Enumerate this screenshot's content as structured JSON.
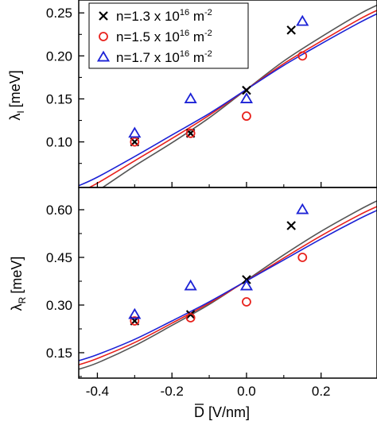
{
  "chart_data": [
    {
      "type": "scatter",
      "panel": "top",
      "ylabel": "λ_I [meV]",
      "ylabel_main": "λ",
      "ylabel_sub": "I",
      "ylabel_unit": "[meV]",
      "xlim": [
        -0.45,
        0.35
      ],
      "ylim": [
        0.047,
        0.265
      ],
      "yticks": [
        0.1,
        0.15,
        0.2,
        0.25
      ],
      "ytick_labels": [
        "0.10",
        "0.15",
        "0.20",
        "0.25"
      ],
      "legend_position": "top-left",
      "series": [
        {
          "name": "n=1.3 x 10^16 m^-2",
          "marker": "x",
          "color": "#000000",
          "points": [
            [
              -0.3,
              0.1
            ],
            [
              -0.15,
              0.11
            ],
            [
              0.0,
              0.16
            ],
            [
              0.12,
              0.23
            ]
          ]
        },
        {
          "name": "n=1.5 x 10^16 m^-2",
          "marker": "circle",
          "color": "#e8211c",
          "points": [
            [
              -0.3,
              0.1
            ],
            [
              -0.15,
              0.11
            ],
            [
              0.0,
              0.13
            ],
            [
              0.15,
              0.2
            ]
          ]
        },
        {
          "name": "n=1.7 x 10^16 m^-2",
          "marker": "triangle",
          "color": "#1c22d6",
          "points": [
            [
              -0.3,
              0.11
            ],
            [
              -0.15,
              0.15
            ],
            [
              0.0,
              0.15
            ],
            [
              0.15,
              0.24
            ]
          ]
        }
      ],
      "fits": [
        {
          "color": "#555555",
          "points": [
            [
              -0.45,
              0.031
            ],
            [
              -0.4,
              0.043
            ],
            [
              -0.3,
              0.072
            ],
            [
              -0.2,
              0.099
            ],
            [
              -0.1,
              0.128
            ],
            [
              0.0,
              0.161
            ],
            [
              0.1,
              0.194
            ],
            [
              0.2,
              0.222
            ],
            [
              0.3,
              0.248
            ],
            [
              0.35,
              0.259
            ]
          ]
        },
        {
          "color": "#e8211c",
          "points": [
            [
              -0.45,
              0.041
            ],
            [
              -0.4,
              0.052
            ],
            [
              -0.3,
              0.078
            ],
            [
              -0.2,
              0.104
            ],
            [
              -0.1,
              0.131
            ],
            [
              0.0,
              0.161
            ],
            [
              0.1,
              0.191
            ],
            [
              0.2,
              0.217
            ],
            [
              0.3,
              0.242
            ],
            [
              0.35,
              0.253
            ]
          ]
        },
        {
          "color": "#1c22d6",
          "points": [
            [
              -0.45,
              0.049
            ],
            [
              -0.4,
              0.059
            ],
            [
              -0.3,
              0.083
            ],
            [
              -0.2,
              0.108
            ],
            [
              -0.1,
              0.133
            ],
            [
              0.0,
              0.161
            ],
            [
              0.1,
              0.189
            ],
            [
              0.2,
              0.214
            ],
            [
              0.3,
              0.238
            ],
            [
              0.35,
              0.249
            ]
          ]
        }
      ]
    },
    {
      "type": "scatter",
      "panel": "bottom",
      "ylabel": "λ_R [meV]",
      "ylabel_main": "λ",
      "ylabel_sub": "R",
      "ylabel_unit": "[meV]",
      "xlabel": "D̅ [V/nm]",
      "xlabel_main": "D",
      "xlabel_unit": "[V/nm]",
      "xlim": [
        -0.45,
        0.35
      ],
      "ylim": [
        0.07,
        0.67
      ],
      "xticks": [
        -0.4,
        -0.2,
        0.0,
        0.2
      ],
      "xtick_labels": [
        "-0.4",
        "-0.2",
        "0.0",
        "0.2"
      ],
      "yticks": [
        0.15,
        0.3,
        0.45,
        0.6
      ],
      "ytick_labels": [
        "0.15",
        "0.30",
        "0.45",
        "0.60"
      ],
      "series": [
        {
          "name": "n=1.3 x 10^16 m^-2",
          "marker": "x",
          "color": "#000000",
          "points": [
            [
              -0.3,
              0.25
            ],
            [
              -0.15,
              0.27
            ],
            [
              0.0,
              0.38
            ],
            [
              0.12,
              0.55
            ]
          ]
        },
        {
          "name": "n=1.5 x 10^16 m^-2",
          "marker": "circle",
          "color": "#e8211c",
          "points": [
            [
              -0.3,
              0.25
            ],
            [
              -0.15,
              0.26
            ],
            [
              0.0,
              0.31
            ],
            [
              0.15,
              0.45
            ]
          ]
        },
        {
          "name": "n=1.7 x 10^16 m^-2",
          "marker": "triangle",
          "color": "#1c22d6",
          "points": [
            [
              -0.3,
              0.27
            ],
            [
              -0.15,
              0.36
            ],
            [
              0.0,
              0.36
            ],
            [
              0.15,
              0.6
            ]
          ]
        }
      ],
      "fits": [
        {
          "color": "#555555",
          "points": [
            [
              -0.45,
              0.098
            ],
            [
              -0.4,
              0.118
            ],
            [
              -0.3,
              0.172
            ],
            [
              -0.2,
              0.236
            ],
            [
              -0.1,
              0.302
            ],
            [
              0.0,
              0.378
            ],
            [
              0.1,
              0.458
            ],
            [
              0.2,
              0.532
            ],
            [
              0.3,
              0.598
            ],
            [
              0.35,
              0.628
            ]
          ]
        },
        {
          "color": "#e8211c",
          "points": [
            [
              -0.45,
              0.112
            ],
            [
              -0.4,
              0.132
            ],
            [
              -0.3,
              0.182
            ],
            [
              -0.2,
              0.243
            ],
            [
              -0.1,
              0.306
            ],
            [
              0.0,
              0.376
            ],
            [
              0.1,
              0.448
            ],
            [
              0.2,
              0.518
            ],
            [
              0.3,
              0.582
            ],
            [
              0.35,
              0.61
            ]
          ]
        },
        {
          "color": "#1c22d6",
          "points": [
            [
              -0.45,
              0.125
            ],
            [
              -0.4,
              0.144
            ],
            [
              -0.3,
              0.192
            ],
            [
              -0.2,
              0.25
            ],
            [
              -0.1,
              0.31
            ],
            [
              0.0,
              0.376
            ],
            [
              0.1,
              0.442
            ],
            [
              0.2,
              0.508
            ],
            [
              0.3,
              0.57
            ],
            [
              0.35,
              0.598
            ]
          ]
        }
      ]
    }
  ],
  "legend": [
    {
      "marker": "x",
      "color": "#000000",
      "prefix": "n=1.3 x 10",
      "exp": "16",
      "unit": " m",
      "unit_exp": "-2"
    },
    {
      "marker": "circle",
      "color": "#e8211c",
      "prefix": "n=1.5 x 10",
      "exp": "16",
      "unit": " m",
      "unit_exp": "-2"
    },
    {
      "marker": "triangle",
      "color": "#1c22d6",
      "prefix": "n=1.7 x 10",
      "exp": "16",
      "unit": " m",
      "unit_exp": "-2"
    }
  ]
}
